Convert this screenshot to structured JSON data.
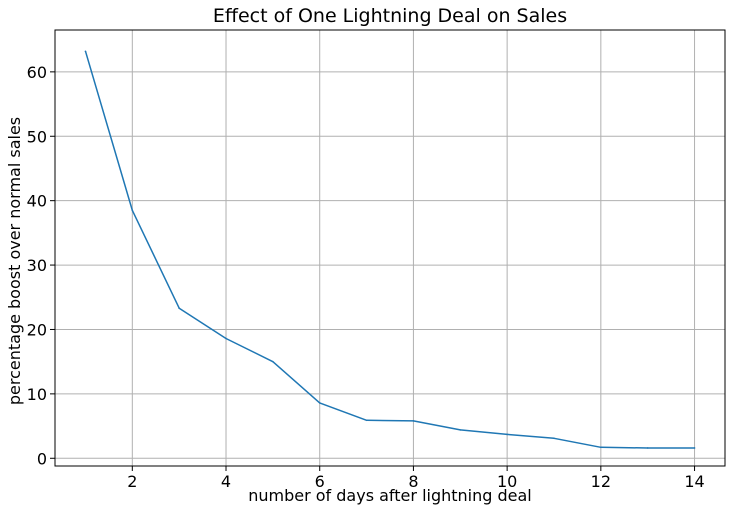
{
  "chart_data": {
    "type": "line",
    "title": "Effect of One Lightning Deal on Sales",
    "xlabel": "number of days after lightning deal",
    "ylabel": "percentage boost over normal sales",
    "xlim": [
      0.35,
      14.65
    ],
    "ylim": [
      -1.2,
      66.5
    ],
    "xticks": [
      2,
      4,
      6,
      8,
      10,
      12,
      14
    ],
    "yticks": [
      0,
      10,
      20,
      30,
      40,
      50,
      60
    ],
    "grid": true,
    "series": [
      {
        "color": "#1f77b4",
        "x": [
          1,
          2,
          3,
          4,
          5,
          6,
          7,
          8,
          9,
          10,
          11,
          12,
          13,
          14
        ],
        "y": [
          63.2,
          38.5,
          23.3,
          18.6,
          15.0,
          8.6,
          5.9,
          5.8,
          4.4,
          3.7,
          3.1,
          1.7,
          1.6,
          1.6
        ]
      }
    ]
  }
}
